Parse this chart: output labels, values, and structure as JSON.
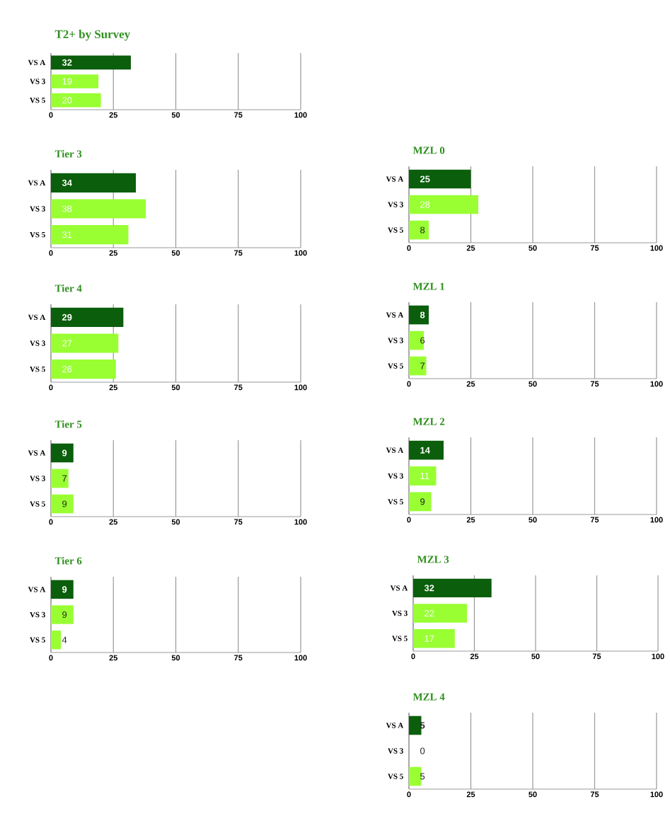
{
  "chart_data": [
    {
      "type": "bar",
      "orientation": "horizontal",
      "title": "T2+ by Survey",
      "categories": [
        "VS A",
        "VS 3",
        "VS 5"
      ],
      "values": [
        32,
        19,
        20
      ],
      "colors": [
        "#0b5e0b",
        "#99ff33",
        "#99ff33"
      ],
      "data_labels": true,
      "xlim": [
        0,
        100
      ],
      "xticks": [
        0,
        25,
        50,
        75,
        100
      ],
      "grid": "x"
    },
    {
      "type": "bar",
      "orientation": "horizontal",
      "title": "Tier 3",
      "categories": [
        "VS A",
        "VS 3",
        "VS 5"
      ],
      "values": [
        34,
        38,
        31
      ],
      "colors": [
        "#0b5e0b",
        "#99ff33",
        "#99ff33"
      ],
      "data_labels": true,
      "xlim": [
        0,
        100
      ],
      "xticks": [
        0,
        25,
        50,
        75,
        100
      ],
      "grid": "x"
    },
    {
      "type": "bar",
      "orientation": "horizontal",
      "title": "Tier 4",
      "categories": [
        "VS A",
        "VS 3",
        "VS 5"
      ],
      "values": [
        29,
        27,
        26
      ],
      "colors": [
        "#0b5e0b",
        "#99ff33",
        "#99ff33"
      ],
      "data_labels": true,
      "xlim": [
        0,
        100
      ],
      "xticks": [
        0,
        25,
        50,
        75,
        100
      ],
      "grid": "x"
    },
    {
      "type": "bar",
      "orientation": "horizontal",
      "title": "Tier 5",
      "categories": [
        "VS A",
        "VS 3",
        "VS 5"
      ],
      "values": [
        9,
        7,
        9
      ],
      "colors": [
        "#0b5e0b",
        "#99ff33",
        "#99ff33"
      ],
      "data_labels": true,
      "xlim": [
        0,
        100
      ],
      "xticks": [
        0,
        25,
        50,
        75,
        100
      ],
      "grid": "x"
    },
    {
      "type": "bar",
      "orientation": "horizontal",
      "title": "Tier 6",
      "categories": [
        "VS A",
        "VS 3",
        "VS 5"
      ],
      "values": [
        9,
        9,
        4
      ],
      "colors": [
        "#0b5e0b",
        "#99ff33",
        "#99ff33"
      ],
      "data_labels": true,
      "xlim": [
        0,
        100
      ],
      "xticks": [
        0,
        25,
        50,
        75,
        100
      ],
      "grid": "x"
    },
    {
      "type": "bar",
      "orientation": "horizontal",
      "title": "MZL 0",
      "categories": [
        "VS A",
        "VS 3",
        "VS 5"
      ],
      "values": [
        25,
        28,
        8
      ],
      "colors": [
        "#0b5e0b",
        "#99ff33",
        "#99ff33"
      ],
      "data_labels": true,
      "xlim": [
        0,
        100
      ],
      "xticks": [
        0,
        25,
        50,
        75,
        100
      ],
      "grid": "x"
    },
    {
      "type": "bar",
      "orientation": "horizontal",
      "title": "MZL 1",
      "categories": [
        "VS A",
        "VS 3",
        "VS 5"
      ],
      "values": [
        8,
        6,
        7
      ],
      "colors": [
        "#0b5e0b",
        "#99ff33",
        "#99ff33"
      ],
      "data_labels": true,
      "xlim": [
        0,
        100
      ],
      "xticks": [
        0,
        25,
        50,
        75,
        100
      ],
      "grid": "x"
    },
    {
      "type": "bar",
      "orientation": "horizontal",
      "title": "MZL 2",
      "categories": [
        "VS A",
        "VS 3",
        "VS 5"
      ],
      "values": [
        14,
        11,
        9
      ],
      "colors": [
        "#0b5e0b",
        "#99ff33",
        "#99ff33"
      ],
      "data_labels": true,
      "xlim": [
        0,
        100
      ],
      "xticks": [
        0,
        25,
        50,
        75,
        100
      ],
      "grid": "x"
    },
    {
      "type": "bar",
      "orientation": "horizontal",
      "title": "MZL  3",
      "categories": [
        "VS A",
        "VS 3",
        "VS 5"
      ],
      "values": [
        32,
        22,
        17
      ],
      "colors": [
        "#0b5e0b",
        "#99ff33",
        "#99ff33"
      ],
      "data_labels": true,
      "xlim": [
        0,
        100
      ],
      "xticks": [
        0,
        25,
        50,
        75,
        100
      ],
      "grid": "x"
    },
    {
      "type": "bar",
      "orientation": "horizontal",
      "title": "MZL  4",
      "categories": [
        "VS A",
        "VS 3",
        "VS 5"
      ],
      "values": [
        5,
        0,
        5
      ],
      "colors": [
        "#0b5e0b",
        "#99ff33",
        "#99ff33"
      ],
      "data_labels": true,
      "xlim": [
        0,
        100
      ],
      "xticks": [
        0,
        25,
        50,
        75,
        100
      ],
      "grid": "x"
    }
  ]
}
